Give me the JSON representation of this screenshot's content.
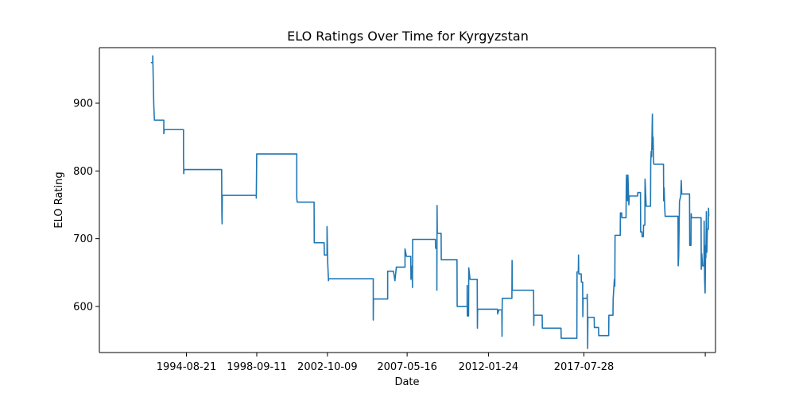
{
  "chart_data": {
    "type": "line",
    "title": "ELO Ratings Over Time for Kyrgyzstan",
    "xlabel": "Date",
    "ylabel": "ELO Rating",
    "xlim": [
      "1989-08-12",
      "2025-03-01"
    ],
    "ylim": [
      532,
      982
    ],
    "x_ticks": [
      "1994-08-21",
      "1998-09-11",
      "2002-10-09",
      "2007-05-16",
      "2012-01-24",
      "2017-07-28",
      "2024-07-28"
    ],
    "x_tick_labels": [
      "1994-08-21",
      "1998-09-11",
      "2002-10-09",
      "2007-05-16",
      "2012-01-24",
      "2017-07-28",
      ""
    ],
    "y_ticks": [
      600,
      700,
      800,
      900
    ],
    "grid": false,
    "color": "#1f77b4",
    "series": [
      {
        "name": "",
        "points": [
          [
            "1992-08-01",
            960
          ],
          [
            "1992-09-10",
            960
          ],
          [
            "1992-09-10",
            970
          ],
          [
            "1992-09-20",
            937
          ],
          [
            "1992-10-01",
            899
          ],
          [
            "1992-10-15",
            875
          ],
          [
            "1993-05-01",
            875
          ],
          [
            "1993-05-01",
            855
          ],
          [
            "1993-05-10",
            861
          ],
          [
            "1994-06-20",
            861
          ],
          [
            "1994-06-20",
            820
          ],
          [
            "1994-06-25",
            796
          ],
          [
            "1994-07-01",
            802
          ],
          [
            "1996-09-01",
            802
          ],
          [
            "1996-09-05",
            740
          ],
          [
            "1996-09-10",
            722
          ],
          [
            "1996-09-15",
            764
          ],
          [
            "1998-09-01",
            764
          ],
          [
            "1998-09-01",
            760
          ],
          [
            "1998-09-10",
            825
          ],
          [
            "2001-01-01",
            825
          ],
          [
            "2001-01-01",
            760
          ],
          [
            "2001-01-10",
            754
          ],
          [
            "2002-01-01",
            754
          ],
          [
            "2002-01-05",
            694
          ],
          [
            "2002-08-01",
            694
          ],
          [
            "2002-08-05",
            676
          ],
          [
            "2002-10-01",
            676
          ],
          [
            "2002-10-01",
            718
          ],
          [
            "2002-10-15",
            665
          ],
          [
            "2002-11-01",
            638
          ],
          [
            "2002-11-05",
            641
          ],
          [
            "2003-08-01",
            641
          ],
          [
            "2003-08-01",
            641
          ],
          [
            "2005-06-01",
            641
          ],
          [
            "2005-06-01",
            580
          ],
          [
            "2005-06-05",
            611
          ],
          [
            "2006-04-01",
            611
          ],
          [
            "2006-04-01",
            652
          ],
          [
            "2006-08-01",
            652
          ],
          [
            "2006-09-01",
            638
          ],
          [
            "2006-10-01",
            658
          ],
          [
            "2007-04-01",
            658
          ],
          [
            "2007-04-01",
            685
          ],
          [
            "2007-05-01",
            674
          ],
          [
            "2007-08-01",
            674
          ],
          [
            "2007-08-05",
            640
          ],
          [
            "2007-09-01",
            660
          ],
          [
            "2007-09-05",
            628
          ],
          [
            "2007-09-10",
            699
          ],
          [
            "2009-01-01",
            699
          ],
          [
            "2009-01-05",
            686
          ],
          [
            "2009-02-01",
            686
          ],
          [
            "2009-02-01",
            624
          ],
          [
            "2009-02-05",
            749
          ],
          [
            "2009-02-10",
            708
          ],
          [
            "2009-05-01",
            708
          ],
          [
            "2009-05-05",
            669
          ],
          [
            "2010-04-01",
            669
          ],
          [
            "2010-04-05",
            600
          ],
          [
            "2010-11-01",
            600
          ],
          [
            "2010-11-01",
            631
          ],
          [
            "2010-11-05",
            586
          ],
          [
            "2010-12-01",
            586
          ],
          [
            "2010-12-05",
            657
          ],
          [
            "2011-01-01",
            640
          ],
          [
            "2011-06-01",
            640
          ],
          [
            "2011-06-05",
            568
          ],
          [
            "2011-06-10",
            596
          ],
          [
            "2012-08-01",
            596
          ],
          [
            "2012-08-05",
            589
          ],
          [
            "2012-09-01",
            595
          ],
          [
            "2012-11-01",
            595
          ],
          [
            "2012-11-05",
            556
          ],
          [
            "2012-11-10",
            612
          ],
          [
            "2013-06-01",
            612
          ],
          [
            "2013-06-05",
            668
          ],
          [
            "2013-06-10",
            624
          ],
          [
            "2014-09-01",
            624
          ],
          [
            "2014-09-05",
            572
          ],
          [
            "2014-09-10",
            587
          ],
          [
            "2015-03-01",
            587
          ],
          [
            "2015-03-05",
            568
          ],
          [
            "2016-04-01",
            568
          ],
          [
            "2016-04-05",
            553
          ],
          [
            "2017-03-01",
            553
          ],
          [
            "2017-03-05",
            651
          ],
          [
            "2017-04-01",
            651
          ],
          [
            "2017-04-05",
            676
          ],
          [
            "2017-04-10",
            648
          ],
          [
            "2017-06-01",
            648
          ],
          [
            "2017-06-05",
            636
          ],
          [
            "2017-07-01",
            636
          ],
          [
            "2017-07-05",
            585
          ],
          [
            "2017-07-10",
            612
          ],
          [
            "2017-10-01",
            612
          ],
          [
            "2017-10-05",
            618
          ],
          [
            "2017-10-10",
            596
          ],
          [
            "2017-10-15",
            538
          ],
          [
            "2017-10-20",
            584
          ],
          [
            "2018-03-01",
            584
          ],
          [
            "2018-03-05",
            569
          ],
          [
            "2018-06-01",
            569
          ],
          [
            "2018-06-05",
            557
          ],
          [
            "2019-01-01",
            557
          ],
          [
            "2019-01-05",
            587
          ],
          [
            "2019-04-01",
            587
          ],
          [
            "2019-04-05",
            611
          ],
          [
            "2019-05-01",
            640
          ],
          [
            "2019-05-10",
            630
          ],
          [
            "2019-05-15",
            705
          ],
          [
            "2019-09-01",
            705
          ],
          [
            "2019-09-05",
            738
          ],
          [
            "2019-10-01",
            738
          ],
          [
            "2019-10-05",
            731
          ],
          [
            "2020-01-01",
            731
          ],
          [
            "2020-01-05",
            764
          ],
          [
            "2020-01-10",
            794
          ],
          [
            "2020-02-01",
            756
          ],
          [
            "2020-02-10",
            794
          ],
          [
            "2020-03-01",
            750
          ],
          [
            "2020-03-10",
            763
          ],
          [
            "2020-09-01",
            763
          ],
          [
            "2020-09-05",
            768
          ],
          [
            "2020-11-01",
            768
          ],
          [
            "2020-11-05",
            710
          ],
          [
            "2020-12-01",
            710
          ],
          [
            "2020-12-05",
            703
          ],
          [
            "2021-01-01",
            703
          ],
          [
            "2021-01-05",
            720
          ],
          [
            "2021-02-01",
            720
          ],
          [
            "2021-02-05",
            788
          ],
          [
            "2021-03-01",
            748
          ],
          [
            "2021-06-01",
            748
          ],
          [
            "2021-06-05",
            813
          ],
          [
            "2021-06-15",
            829
          ],
          [
            "2021-06-25",
            821
          ],
          [
            "2021-07-05",
            865
          ],
          [
            "2021-07-10",
            884
          ],
          [
            "2021-07-15",
            832
          ],
          [
            "2021-07-25",
            850
          ],
          [
            "2021-08-05",
            812
          ],
          [
            "2021-08-10",
            810
          ],
          [
            "2022-03-01",
            810
          ],
          [
            "2022-03-05",
            756
          ],
          [
            "2022-03-15",
            775
          ],
          [
            "2022-03-25",
            748
          ],
          [
            "2022-04-05",
            733
          ],
          [
            "2023-01-01",
            733
          ],
          [
            "2023-01-05",
            660
          ],
          [
            "2023-01-15",
            674
          ],
          [
            "2023-02-01",
            755
          ],
          [
            "2023-03-01",
            764
          ],
          [
            "2023-03-10",
            786
          ],
          [
            "2023-03-20",
            766
          ],
          [
            "2023-09-01",
            766
          ],
          [
            "2023-09-05",
            690
          ],
          [
            "2023-10-01",
            690
          ],
          [
            "2023-10-05",
            737
          ],
          [
            "2023-10-15",
            731
          ],
          [
            "2024-05-01",
            731
          ],
          [
            "2024-05-05",
            655
          ],
          [
            "2024-05-15",
            678
          ],
          [
            "2024-06-01",
            660
          ],
          [
            "2024-07-01",
            660
          ],
          [
            "2024-07-05",
            726
          ],
          [
            "2024-07-15",
            640
          ],
          [
            "2024-07-25",
            620
          ],
          [
            "2024-08-05",
            690
          ],
          [
            "2024-08-10",
            672
          ],
          [
            "2024-08-20",
            740
          ],
          [
            "2024-09-01",
            680
          ],
          [
            "2024-09-10",
            714
          ],
          [
            "2024-10-01",
            714
          ],
          [
            "2024-10-05",
            745
          ],
          [
            "2024-10-10",
            733
          ]
        ]
      }
    ]
  }
}
